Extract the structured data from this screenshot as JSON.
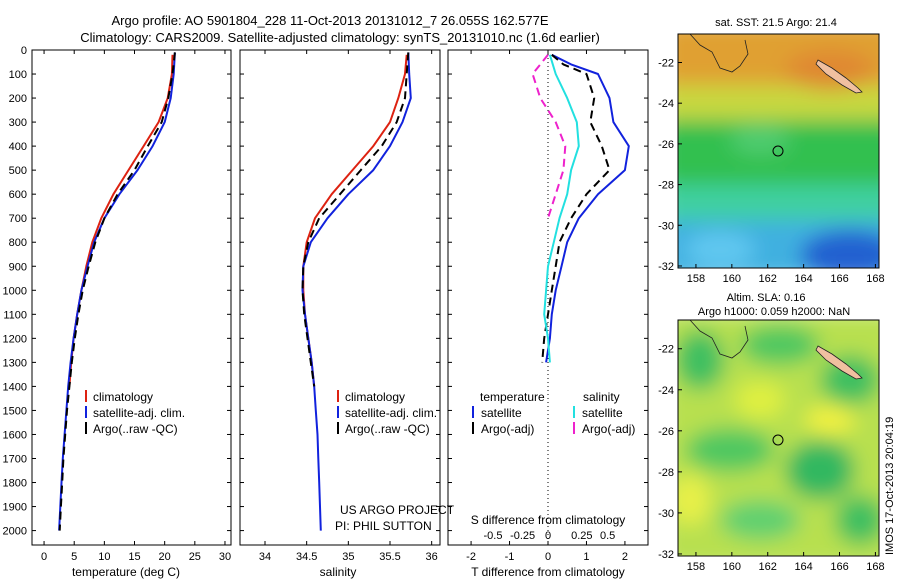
{
  "header": {
    "line1": "Argo profile: AO 5901804_228 11-Oct-2013 20131012_7 26.055S 162.577E",
    "line2": "Climatology: CARS2009. Satellite-adjusted climatology: synTS_20131010.nc (1.6d earlier)"
  },
  "colors": {
    "red": "#dd2211",
    "blue": "#1122dd",
    "black": "#000000",
    "cyan": "#22e0e0",
    "magenta": "#ee22cc"
  },
  "chart_data": [
    {
      "type": "line",
      "xlabel": "temperature (deg C)",
      "ylabel": "",
      "xlim": [
        -2,
        31
      ],
      "ylim": [
        2060,
        0
      ],
      "xticks": [
        "0",
        "5",
        "10",
        "15",
        "20",
        "25",
        "30"
      ],
      "yticks": [
        "0",
        "100",
        "200",
        "300",
        "400",
        "500",
        "600",
        "700",
        "800",
        "900",
        "1000",
        "1100",
        "1200",
        "1300",
        "1400",
        "1500",
        "1600",
        "1700",
        "1800",
        "1900",
        "2000"
      ],
      "legend": {
        "placement": "lower-center",
        "entries": [
          "climatology",
          "satellite-adj. clim.",
          "Argo(..raw -QC)"
        ]
      },
      "series": [
        {
          "name": "climatology",
          "color": "red",
          "dash": "solid",
          "points": [
            [
              21.3,
              20
            ],
            [
              21.2,
              100
            ],
            [
              20.5,
              200
            ],
            [
              19,
              300
            ],
            [
              16.5,
              400
            ],
            [
              14,
              500
            ],
            [
              11.5,
              600
            ],
            [
              9.5,
              700
            ],
            [
              8,
              800
            ],
            [
              7,
              900
            ],
            [
              6.2,
              1000
            ],
            [
              5.5,
              1100
            ],
            [
              4.9,
              1200
            ],
            [
              4.5,
              1300
            ],
            [
              4.2,
              1400
            ]
          ]
        },
        {
          "name": "satellite-adj. clim.",
          "color": "blue",
          "dash": "solid",
          "points": [
            [
              21.7,
              10
            ],
            [
              21.5,
              100
            ],
            [
              21,
              200
            ],
            [
              20,
              300
            ],
            [
              18,
              400
            ],
            [
              15.5,
              500
            ],
            [
              12.5,
              600
            ],
            [
              10,
              700
            ],
            [
              8.3,
              800
            ],
            [
              7.2,
              900
            ],
            [
              6.2,
              1000
            ],
            [
              5.5,
              1100
            ],
            [
              4.9,
              1200
            ],
            [
              4.4,
              1300
            ],
            [
              4,
              1400
            ],
            [
              3.7,
              1500
            ],
            [
              3.4,
              1600
            ],
            [
              3.1,
              1700
            ],
            [
              2.9,
              1800
            ],
            [
              2.7,
              1900
            ],
            [
              2.5,
              2000
            ]
          ]
        },
        {
          "name": "Argo(..raw -QC)",
          "color": "black",
          "dash": "dashed",
          "points": [
            [
              21.7,
              10
            ],
            [
              21.3,
              100
            ],
            [
              20.6,
              200
            ],
            [
              19.5,
              300
            ],
            [
              17.2,
              400
            ],
            [
              15,
              500
            ],
            [
              12.2,
              600
            ],
            [
              10,
              700
            ],
            [
              8.5,
              800
            ],
            [
              7.4,
              900
            ],
            [
              6.4,
              1000
            ],
            [
              5.7,
              1100
            ],
            [
              5.1,
              1200
            ],
            [
              4.6,
              1300
            ],
            [
              4.2,
              1400
            ],
            [
              3.8,
              1500
            ],
            [
              3.5,
              1600
            ],
            [
              3.2,
              1700
            ],
            [
              3,
              1800
            ],
            [
              2.8,
              1900
            ],
            [
              2.6,
              2000
            ]
          ]
        }
      ]
    },
    {
      "type": "line",
      "xlabel": "salinity",
      "ylabel": "",
      "xlim": [
        33.7,
        36.1
      ],
      "ylim": [
        2060,
        0
      ],
      "xticks": [
        "34",
        "34.5",
        "35",
        "35.5",
        "36"
      ],
      "legend": {
        "placement": "lower-center",
        "entries": [
          "climatology",
          "satellite-adj. clim.",
          "Argo(..raw -QC)"
        ]
      },
      "annotation": {
        "line1": "US ARGO PROJECT",
        "line2": "PI: PHIL SUTTON"
      },
      "series": [
        {
          "name": "climatology",
          "color": "red",
          "dash": "solid",
          "points": [
            [
              35.7,
              20
            ],
            [
              35.68,
              100
            ],
            [
              35.6,
              200
            ],
            [
              35.5,
              300
            ],
            [
              35.3,
              400
            ],
            [
              35.05,
              500
            ],
            [
              34.8,
              600
            ],
            [
              34.6,
              700
            ],
            [
              34.5,
              800
            ],
            [
              34.46,
              900
            ],
            [
              34.46,
              1000
            ],
            [
              34.48,
              1100
            ],
            [
              34.52,
              1200
            ],
            [
              34.56,
              1300
            ],
            [
              34.59,
              1400
            ]
          ]
        },
        {
          "name": "satellite-adj. clim.",
          "color": "blue",
          "dash": "solid",
          "points": [
            [
              35.72,
              10
            ],
            [
              35.73,
              100
            ],
            [
              35.75,
              200
            ],
            [
              35.65,
              300
            ],
            [
              35.5,
              400
            ],
            [
              35.3,
              500
            ],
            [
              35,
              600
            ],
            [
              34.75,
              700
            ],
            [
              34.55,
              800
            ],
            [
              34.46,
              900
            ],
            [
              34.45,
              1000
            ],
            [
              34.48,
              1100
            ],
            [
              34.52,
              1200
            ],
            [
              34.56,
              1300
            ],
            [
              34.59,
              1400
            ],
            [
              34.61,
              1500
            ],
            [
              34.63,
              1600
            ],
            [
              34.64,
              1700
            ],
            [
              34.65,
              1800
            ],
            [
              34.66,
              1900
            ],
            [
              34.67,
              2000
            ]
          ]
        },
        {
          "name": "Argo(..raw -QC)",
          "color": "black",
          "dash": "dashed",
          "points": [
            [
              35.72,
              10
            ],
            [
              35.7,
              100
            ],
            [
              35.68,
              200
            ],
            [
              35.58,
              300
            ],
            [
              35.4,
              400
            ],
            [
              35.15,
              500
            ],
            [
              34.9,
              600
            ],
            [
              34.65,
              700
            ],
            [
              34.52,
              800
            ],
            [
              34.46,
              900
            ],
            [
              34.45,
              1000
            ],
            [
              34.47,
              1100
            ],
            [
              34.51,
              1200
            ],
            [
              34.55,
              1300
            ],
            [
              34.59,
              1400
            ]
          ]
        }
      ]
    },
    {
      "type": "line",
      "xlabel": "T difference from climatology",
      "xlabel_top": "S difference from climatology",
      "ylabel": "",
      "xlim": [
        -2.6,
        2.6
      ],
      "ylim": [
        2060,
        0
      ],
      "xticks": [
        "-2",
        "-1",
        "0",
        "1",
        "2"
      ],
      "sticks": [
        {
          "label": "-0.5",
          "x": -1.43
        },
        {
          "label": "-0.25",
          "x": -0.66
        },
        {
          "label": "0",
          "x": 0
        },
        {
          "label": "0.25",
          "x": 0.88
        },
        {
          "label": "0.5",
          "x": 1.55
        }
      ],
      "legend_headers": [
        "temperature",
        "salinity"
      ],
      "legend": {
        "placement": "bottom",
        "entries": [
          "satellite",
          "Argo(-adj)",
          "satellite",
          "Argo(-adj)"
        ]
      },
      "series": [
        {
          "name": "satellite",
          "group": "temperature",
          "color": "blue",
          "dash": "solid",
          "points": [
            [
              0.1,
              20
            ],
            [
              0.6,
              60
            ],
            [
              1.3,
              100
            ],
            [
              1.6,
              200
            ],
            [
              1.7,
              300
            ],
            [
              2.1,
              400
            ],
            [
              2.0,
              500
            ],
            [
              1.3,
              600
            ],
            [
              0.8,
              700
            ],
            [
              0.5,
              800
            ],
            [
              0.35,
              900
            ],
            [
              0.2,
              1000
            ],
            [
              0.1,
              1100
            ],
            [
              0.05,
              1200
            ],
            [
              -0.05,
              1300
            ]
          ]
        },
        {
          "name": "Argo(-adj)",
          "group": "temperature",
          "color": "black",
          "dash": "dashed",
          "points": [
            [
              0.1,
              20
            ],
            [
              0.4,
              60
            ],
            [
              1.0,
              100
            ],
            [
              1.2,
              200
            ],
            [
              1.1,
              300
            ],
            [
              1.4,
              400
            ],
            [
              1.6,
              500
            ],
            [
              1.0,
              600
            ],
            [
              0.6,
              700
            ],
            [
              0.3,
              800
            ],
            [
              0.2,
              900
            ],
            [
              0.1,
              1000
            ],
            [
              0.0,
              1100
            ],
            [
              -0.1,
              1200
            ],
            [
              -0.15,
              1300
            ]
          ]
        },
        {
          "name": "satellite",
          "group": "salinity",
          "color": "cyan",
          "dash": "solid",
          "points": [
            [
              0.05,
              20
            ],
            [
              0.2,
              100
            ],
            [
              0.5,
              200
            ],
            [
              0.75,
              300
            ],
            [
              0.8,
              400
            ],
            [
              0.6,
              500
            ],
            [
              0.5,
              600
            ],
            [
              0.3,
              700
            ],
            [
              0.15,
              800
            ],
            [
              0.0,
              900
            ],
            [
              -0.05,
              1000
            ],
            [
              -0.1,
              1100
            ],
            [
              0.0,
              1200
            ],
            [
              0.05,
              1300
            ]
          ]
        },
        {
          "name": "Argo(-adj)",
          "group": "salinity",
          "color": "magenta",
          "dash": "dashed",
          "points": [
            [
              0.0,
              20
            ],
            [
              -0.4,
              100
            ],
            [
              -0.2,
              200
            ],
            [
              0.2,
              300
            ],
            [
              0.45,
              400
            ],
            [
              0.4,
              500
            ],
            [
              0.2,
              600
            ],
            [
              0.0,
              700
            ]
          ]
        }
      ]
    }
  ],
  "maps": [
    {
      "title": "sat. SST: 21.5 Argo: 21.4",
      "xticks": [
        "158",
        "160",
        "162",
        "164",
        "166",
        "168"
      ],
      "yticks": [
        "-22",
        "-24",
        "-26",
        "-28",
        "-30",
        "-32"
      ]
    },
    {
      "title_line1": "Altim. SLA: 0.16",
      "title_line2": "Argo h1000: 0.059 h2000: NaN",
      "xticks": [
        "158",
        "160",
        "162",
        "164",
        "166",
        "168"
      ],
      "yticks": [
        "-22",
        "-24",
        "-26",
        "-28",
        "-30",
        "-32"
      ]
    }
  ],
  "credit": "IMOS 17-Oct-2013 20:04:19"
}
